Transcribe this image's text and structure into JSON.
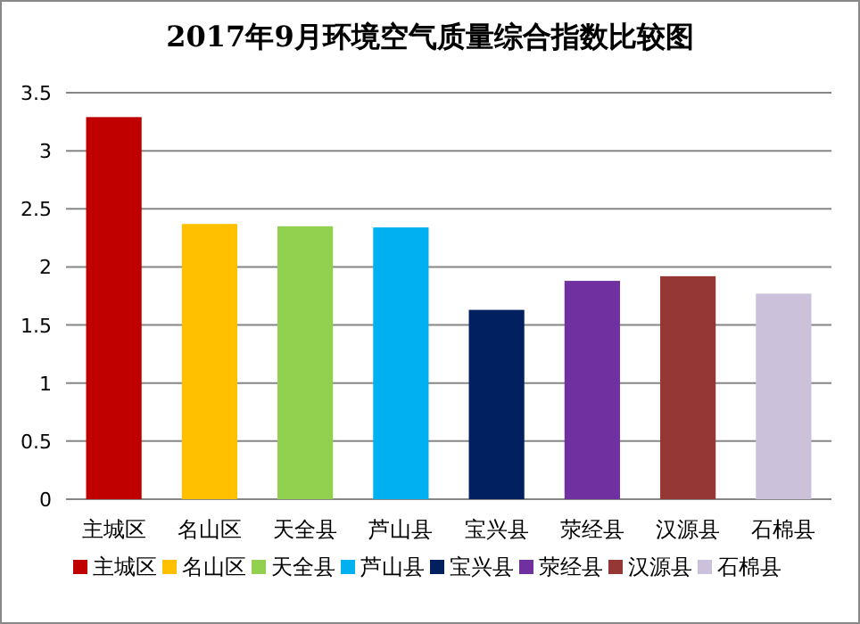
{
  "chart_data": {
    "type": "bar",
    "title": "2017年9月环境空气质量综合指数比较图",
    "categories": [
      "主城区",
      "名山区",
      "天全县",
      "芦山县",
      "宝兴县",
      "荥经县",
      "汉源县",
      "石棉县"
    ],
    "series": [
      {
        "name": "主城区",
        "color": "#c00000",
        "values": [
          3.29,
          null,
          null,
          null,
          null,
          null,
          null,
          null
        ]
      },
      {
        "name": "名山区",
        "color": "#ffc000",
        "values": [
          null,
          2.37,
          null,
          null,
          null,
          null,
          null,
          null
        ]
      },
      {
        "name": "天全县",
        "color": "#92d050",
        "values": [
          null,
          null,
          2.35,
          null,
          null,
          null,
          null,
          null
        ]
      },
      {
        "name": "芦山县",
        "color": "#00b0f0",
        "values": [
          null,
          null,
          null,
          2.34,
          null,
          null,
          null,
          null
        ]
      },
      {
        "name": "宝兴县",
        "color": "#002060",
        "values": [
          null,
          null,
          null,
          null,
          1.63,
          null,
          null,
          null
        ]
      },
      {
        "name": "荥经县",
        "color": "#7030a0",
        "values": [
          null,
          null,
          null,
          null,
          null,
          1.88,
          null,
          null
        ]
      },
      {
        "name": "汉源县",
        "color": "#953735",
        "values": [
          null,
          null,
          null,
          null,
          null,
          null,
          1.92,
          null
        ]
      },
      {
        "name": "石棉县",
        "color": "#ccc1da",
        "values": [
          null,
          null,
          null,
          null,
          null,
          null,
          null,
          1.77
        ]
      }
    ],
    "ylim": [
      0,
      3.5
    ],
    "yticks": [
      0,
      0.5,
      1,
      1.5,
      2,
      2.5,
      3,
      3.5
    ],
    "grid": "y",
    "legend": "bottom"
  }
}
